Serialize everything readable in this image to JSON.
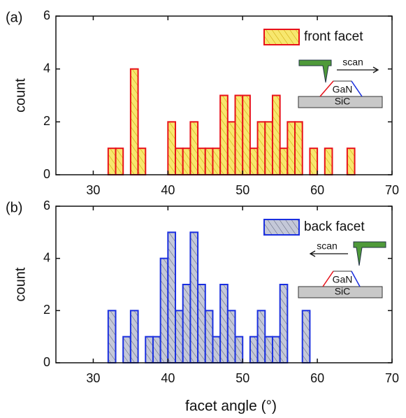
{
  "chart_data": [
    {
      "type": "histogram",
      "panel_label": "(a)",
      "ylabel": "count",
      "bins": [
        32,
        33,
        34,
        35,
        36,
        37,
        38,
        39,
        40,
        41,
        42,
        43,
        44,
        45,
        46,
        47,
        48,
        49,
        50,
        51,
        52,
        53,
        54,
        55,
        56,
        57,
        58,
        59,
        60,
        61,
        62,
        63,
        64,
        65
      ],
      "series": [
        {
          "name": "front facet",
          "color": "#f7e76e",
          "edgecolor": "#e8111a",
          "hatch": "#c9a000",
          "values": [
            1,
            1,
            0,
            4,
            1,
            0,
            0,
            0,
            2,
            1,
            1,
            2,
            1,
            1,
            1,
            3,
            2,
            3,
            3,
            1,
            2,
            2,
            3,
            1,
            2,
            2,
            0,
            1,
            0,
            1,
            0,
            0,
            1
          ]
        }
      ],
      "xlim": [
        25,
        70
      ],
      "xticks": [
        30,
        40,
        50,
        60,
        70
      ],
      "ylim": [
        0,
        6
      ],
      "yticks": [
        0,
        2,
        4,
        6
      ],
      "inset": {
        "scan": "scan",
        "top": "GaN",
        "substrate": "SiC",
        "direction": "right"
      }
    },
    {
      "type": "histogram",
      "panel_label": "(b)",
      "ylabel": "count",
      "xlabel": "facet angle (°)",
      "bins": [
        32,
        33,
        34,
        35,
        36,
        37,
        38,
        39,
        40,
        41,
        42,
        43,
        44,
        45,
        46,
        47,
        48,
        49,
        50,
        51,
        52,
        53,
        54,
        55,
        56,
        57,
        58,
        59
      ],
      "series": [
        {
          "name": "back facet",
          "color": "#c4c8d8",
          "edgecolor": "#1a2fe0",
          "hatch": "#5a5f78",
          "values": [
            2,
            0,
            1,
            2,
            0,
            1,
            1,
            4,
            5,
            2,
            3,
            5,
            3,
            2,
            1,
            3,
            2,
            1,
            0,
            1,
            2,
            1,
            1,
            3,
            0,
            0,
            2
          ]
        }
      ],
      "xlim": [
        25,
        70
      ],
      "xticks": [
        30,
        40,
        50,
        60,
        70
      ],
      "ylim": [
        0,
        6
      ],
      "yticks": [
        0,
        2,
        4,
        6
      ],
      "inset": {
        "scan": "scan",
        "top": "GaN",
        "substrate": "SiC",
        "direction": "left"
      }
    }
  ]
}
